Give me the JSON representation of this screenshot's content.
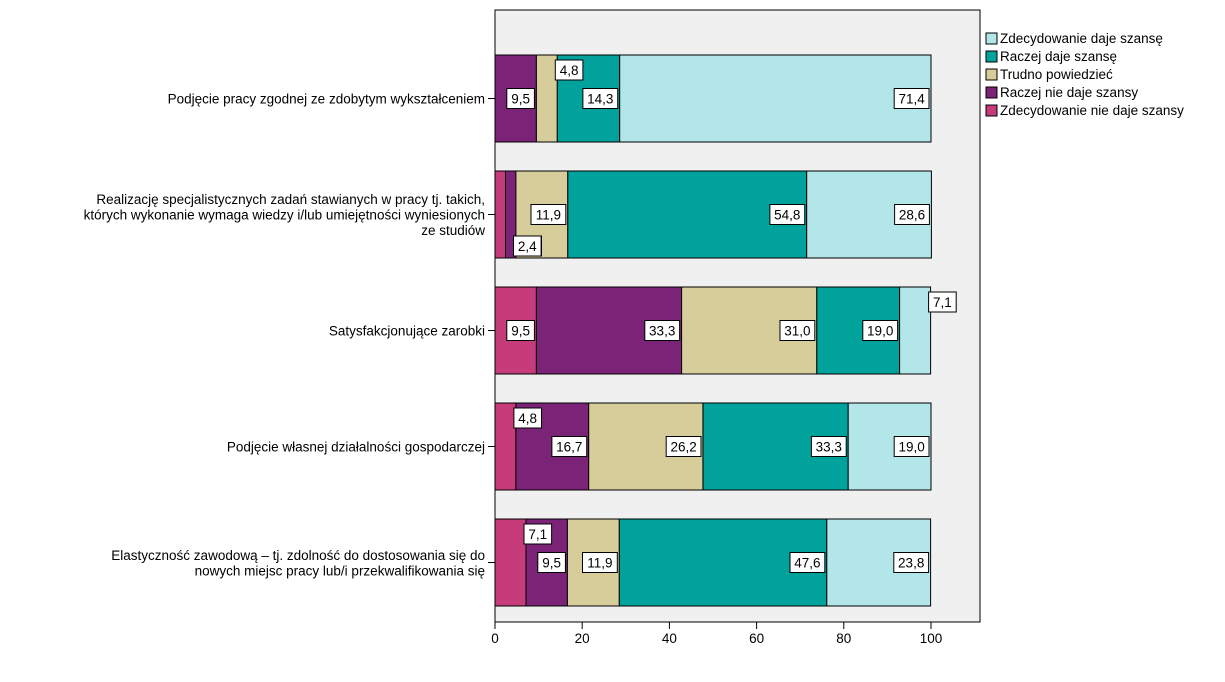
{
  "chart_data": {
    "type": "bar",
    "orientation": "horizontal",
    "stacked": true,
    "title": "",
    "xlabel": "",
    "ylabel": "",
    "xlim": [
      0,
      100
    ],
    "x_ticks": [
      "0",
      "20",
      "40",
      "60",
      "80",
      "100"
    ],
    "grid": false,
    "legend_position": "top-right",
    "plot_background": "#f0f0f0",
    "categories": [
      [
        "Podjęcie pracy zgodnej ze zdobytym wykształceniem"
      ],
      [
        "Realizację specjalistycznych zadań stawianych w pracy tj. takich,",
        "których wykonanie wymaga wiedzy i/lub umiejętności wyniesionych",
        "ze studiów"
      ],
      [
        "Satysfakcjonujące zarobki"
      ],
      [
        "Podjęcie własnej działalności gospodarczej"
      ],
      [
        "Elastyczność zawodową –  tj. zdolność do dostosowania się do",
        "nowych miejsc pracy lub/i przekwalifikowania się"
      ]
    ],
    "series": [
      {
        "name": "Zdecydowanie nie daje szansy",
        "color": "#c63c7a",
        "values": [
          0,
          2.4,
          9.5,
          4.8,
          7.1
        ],
        "labels": [
          "",
          "",
          "9,5",
          "4,8",
          "7,1"
        ]
      },
      {
        "name": "Raczej nie daje szansy",
        "color": "#7a2377",
        "values": [
          9.5,
          2.4,
          33.3,
          16.7,
          9.5
        ],
        "labels": [
          "9,5",
          "2,4",
          "33,3",
          "16,7",
          "9,5"
        ]
      },
      {
        "name": "Trudno powiedzieć",
        "color": "#d6cd9a",
        "values": [
          4.8,
          11.9,
          31.0,
          26.2,
          11.9
        ],
        "labels": [
          "4,8",
          "11,9",
          "31,0",
          "26,2",
          "11,9"
        ]
      },
      {
        "name": "Raczej daje szansę",
        "color": "#00a29b",
        "values": [
          14.3,
          54.8,
          19.0,
          33.3,
          47.6
        ],
        "labels": [
          "14,3",
          "54,8",
          "19,0",
          "33,3",
          "47,6"
        ]
      },
      {
        "name": "Zdecydowanie daje szansę",
        "color": "#b2e6e8",
        "values": [
          71.4,
          28.6,
          7.1,
          19.0,
          23.8
        ],
        "labels": [
          "71,4",
          "28,6",
          "7,1",
          "19,0",
          "23,8"
        ]
      }
    ],
    "extra_labels": [
      {
        "category": 1,
        "text": "2,4"
      }
    ],
    "legend_order": [
      "Zdecydowanie daje szansę",
      "Raczej daje szansę",
      "Trudno powiedzieć",
      "Raczej nie daje szansy",
      "Zdecydowanie nie daje szansy"
    ]
  }
}
